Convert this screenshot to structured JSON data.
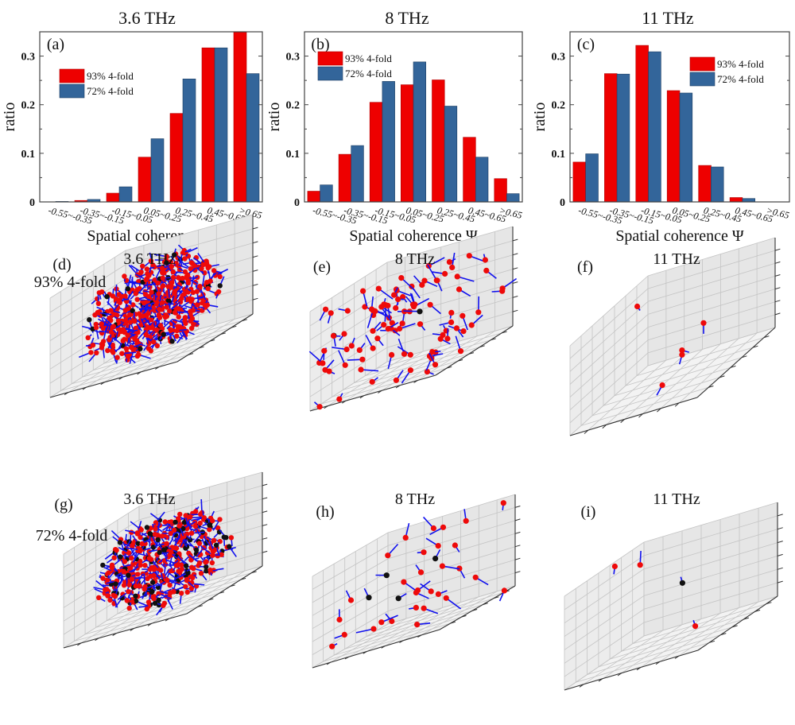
{
  "figure": {
    "description": "Spatial coherence histograms and 3D eigenvector visualizations at three frequencies for two 4-fold fractions"
  },
  "chart_data": [
    {
      "id": "a",
      "type": "bar",
      "panel_label": "(a)",
      "title": "3.6 THz",
      "xlabel": "Spatial coherence Ψ",
      "ylabel": "ratio",
      "ylim": [
        0,
        0.35
      ],
      "yticks": [
        "0",
        "0.1",
        "0.2",
        "0.3"
      ],
      "ytick_values": [
        0,
        0.1,
        0.2,
        0.3
      ],
      "legend_position": "upper-left",
      "categories": [
        "-0.55~-0.35",
        "-0.35~-0.15",
        "-0.15~0.05",
        "0.05~0.25",
        "0.25~0.45",
        "0.45~0.65",
        ">0.65"
      ],
      "series": [
        {
          "name": "93% 4-fold",
          "color": "#ee0000",
          "values": [
            0.0,
            0.003,
            0.018,
            0.092,
            0.182,
            0.317,
            0.35
          ]
        },
        {
          "name": "72% 4-fold",
          "color": "#33659a",
          "values": [
            0.001,
            0.005,
            0.031,
            0.13,
            0.253,
            0.317,
            0.264
          ]
        }
      ]
    },
    {
      "id": "b",
      "type": "bar",
      "panel_label": "(b)",
      "title": "8 THz",
      "xlabel": "Spatial coherence Ψ",
      "ylabel": "ratio",
      "ylim": [
        0,
        0.35
      ],
      "yticks": [
        "0",
        "0.1",
        "0.2",
        "0.3"
      ],
      "ytick_values": [
        0,
        0.1,
        0.2,
        0.3
      ],
      "legend_position": "upper-left",
      "categories": [
        "-0.55~-0.35",
        "-0.35~-0.15",
        "-0.15~0.05",
        "0.05~0.25",
        "0.25~0.45",
        "0.45~0.65",
        ">0.65"
      ],
      "series": [
        {
          "name": "93% 4-fold",
          "color": "#ee0000",
          "values": [
            0.022,
            0.098,
            0.205,
            0.241,
            0.251,
            0.133,
            0.048
          ]
        },
        {
          "name": "72% 4-fold",
          "color": "#33659a",
          "values": [
            0.035,
            0.116,
            0.248,
            0.288,
            0.197,
            0.092,
            0.017
          ]
        }
      ]
    },
    {
      "id": "c",
      "type": "bar",
      "panel_label": "(c)",
      "title": "11 THz",
      "xlabel": "Spatial coherence Ψ",
      "ylabel": "ratio",
      "ylim": [
        0,
        0.35
      ],
      "yticks": [
        "0",
        "0.1",
        "0.2",
        "0.3"
      ],
      "ytick_values": [
        0,
        0.1,
        0.2,
        0.3
      ],
      "legend_position": "upper-right",
      "categories": [
        "-0.55~-0.35",
        "-0.35~-0.15",
        "-0.15~0.05",
        "0.05~0.25",
        "0.25~0.45",
        "0.45~0.65",
        ">0.65"
      ],
      "series": [
        {
          "name": "93% 4-fold",
          "color": "#ee0000",
          "values": [
            0.082,
            0.264,
            0.322,
            0.229,
            0.075,
            0.009,
            0.0
          ]
        },
        {
          "name": "72% 4-fold",
          "color": "#33659a",
          "values": [
            0.099,
            0.263,
            0.309,
            0.224,
            0.072,
            0.007,
            0.0
          ]
        }
      ]
    },
    {
      "id": "d",
      "type": "scatter3d",
      "panel_label": "(d)",
      "title": "3.6 THz",
      "row_label": "93% 4-fold",
      "approx_red_atoms": 420,
      "approx_black_atoms": 40,
      "arrow_color": "#1010ee",
      "seed": 11,
      "density": "dense"
    },
    {
      "id": "e",
      "type": "scatter3d",
      "panel_label": "(e)",
      "title": "8 THz",
      "row_label": "",
      "approx_red_atoms": 95,
      "approx_black_atoms": 2,
      "arrow_color": "#1010ee",
      "seed": 23,
      "density": "medium"
    },
    {
      "id": "f",
      "type": "scatter3d",
      "panel_label": "(f)",
      "title": "11 THz",
      "row_label": "",
      "approx_red_atoms": 5,
      "approx_black_atoms": 0,
      "arrow_color": "#1010ee",
      "seed": 37,
      "density": "sparse",
      "points": [
        [
          0.02,
          0.45,
          0.3
        ],
        [
          0.3,
          0.1,
          0.85
        ],
        [
          0.95,
          0.85,
          0.55
        ],
        [
          0.95,
          0.85,
          0.5
        ],
        [
          0.55,
          0.45,
          0.02
        ]
      ]
    },
    {
      "id": "g",
      "type": "scatter3d",
      "panel_label": "(g)",
      "title": "3.6 THz",
      "row_label": "72% 4-fold",
      "approx_red_atoms": 300,
      "approx_black_atoms": 110,
      "arrow_color": "#1010ee",
      "seed": 53,
      "density": "dense"
    },
    {
      "id": "h",
      "type": "scatter3d",
      "panel_label": "(h)",
      "title": "8 THz",
      "row_label": "",
      "approx_red_atoms": 30,
      "approx_black_atoms": 4,
      "arrow_color": "#1010ee",
      "seed": 71,
      "density": "medium"
    },
    {
      "id": "i",
      "type": "scatter3d",
      "panel_label": "(i)",
      "title": "11 THz",
      "row_label": "",
      "approx_red_atoms": 3,
      "approx_black_atoms": 1,
      "arrow_color": "#1010ee",
      "seed": 89,
      "density": "sparse",
      "points": [
        [
          0.45,
          0.05,
          0.98
        ],
        [
          0.25,
          0.12,
          0.85
        ],
        [
          0.95,
          0.95,
          0.25
        ]
      ],
      "black_points": [
        [
          0.02,
          0.3,
          0.45
        ]
      ]
    }
  ]
}
